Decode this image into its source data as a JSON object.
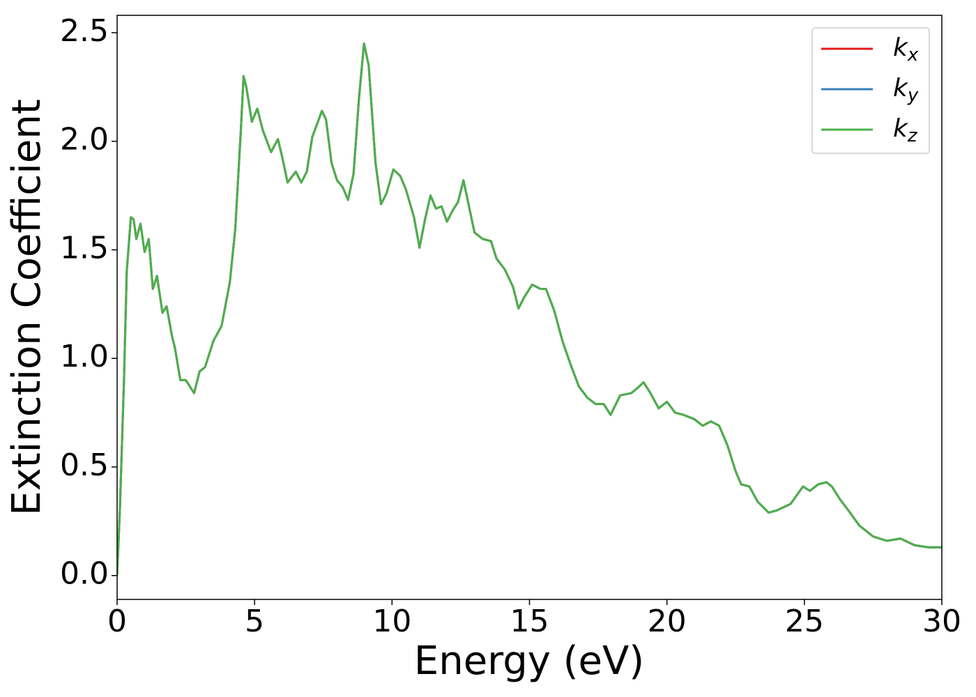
{
  "chart_data": {
    "type": "line",
    "xlabel": "Energy (eV)",
    "ylabel": "Extinction Coefficient",
    "xlim": [
      0,
      30
    ],
    "xticks": [
      0,
      5,
      10,
      15,
      20,
      25,
      30
    ],
    "ylim": [
      -0.11,
      2.58
    ],
    "yticks": [
      {
        "value": 0,
        "label": "0.0"
      },
      0.5,
      {
        "value": 1,
        "label": "1.0"
      },
      1.5,
      {
        "value": 2,
        "label": "2.0"
      },
      2.5
    ],
    "legend": "upper right",
    "x": [
      0,
      0.1,
      0.25,
      0.35,
      0.5,
      0.6,
      0.7,
      0.85,
      1.0,
      1.15,
      1.3,
      1.45,
      1.65,
      1.8,
      2.0,
      2.1,
      2.3,
      2.5,
      2.8,
      3.0,
      3.2,
      3.5,
      3.8,
      4.1,
      4.3,
      4.5,
      4.6,
      4.7,
      4.9,
      5.1,
      5.3,
      5.6,
      5.85,
      6.0,
      6.2,
      6.5,
      6.7,
      6.9,
      7.1,
      7.45,
      7.6,
      7.8,
      8.0,
      8.2,
      8.4,
      8.6,
      8.8,
      8.98,
      9.15,
      9.4,
      9.6,
      9.8,
      10.05,
      10.3,
      10.5,
      10.8,
      11.0,
      11.2,
      11.4,
      11.6,
      11.8,
      12.0,
      12.2,
      12.4,
      12.6,
      12.8,
      13.0,
      13.3,
      13.6,
      13.8,
      14.1,
      14.4,
      14.6,
      14.8,
      15.1,
      15.4,
      15.6,
      15.9,
      16.2,
      16.5,
      16.8,
      17.1,
      17.4,
      17.7,
      17.95,
      18.3,
      18.7,
      18.9,
      19.15,
      19.4,
      19.7,
      20.0,
      20.3,
      20.6,
      21.0,
      21.3,
      21.6,
      21.9,
      22.2,
      22.5,
      22.7,
      23.0,
      23.3,
      23.7,
      24.0,
      24.5,
      24.95,
      25.2,
      25.5,
      25.8,
      26.0,
      26.3,
      26.6,
      27.0,
      27.5,
      28.0,
      28.5,
      29.0,
      29.5,
      30.0
    ],
    "series": [
      {
        "name": "kx",
        "color": "#e41a1c",
        "values": [
          0,
          0.3,
          0.9,
          1.4,
          1.65,
          1.64,
          1.55,
          1.62,
          1.49,
          1.55,
          1.32,
          1.38,
          1.21,
          1.24,
          1.1,
          1.05,
          0.9,
          0.9,
          0.84,
          0.94,
          0.96,
          1.08,
          1.15,
          1.35,
          1.6,
          2.05,
          2.3,
          2.25,
          2.09,
          2.15,
          2.05,
          1.95,
          2.01,
          1.93,
          1.81,
          1.86,
          1.81,
          1.86,
          2.02,
          2.14,
          2.1,
          1.9,
          1.82,
          1.79,
          1.73,
          1.85,
          2.2,
          2.45,
          2.35,
          1.9,
          1.71,
          1.76,
          1.87,
          1.84,
          1.78,
          1.65,
          1.51,
          1.64,
          1.75,
          1.69,
          1.7,
          1.63,
          1.68,
          1.72,
          1.82,
          1.7,
          1.58,
          1.55,
          1.54,
          1.46,
          1.41,
          1.33,
          1.23,
          1.28,
          1.34,
          1.32,
          1.32,
          1.22,
          1.08,
          0.97,
          0.87,
          0.82,
          0.79,
          0.79,
          0.74,
          0.83,
          0.84,
          0.86,
          0.89,
          0.84,
          0.77,
          0.8,
          0.75,
          0.74,
          0.72,
          0.69,
          0.71,
          0.69,
          0.6,
          0.48,
          0.42,
          0.41,
          0.34,
          0.29,
          0.3,
          0.33,
          0.41,
          0.39,
          0.42,
          0.43,
          0.41,
          0.35,
          0.3,
          0.23,
          0.18,
          0.16,
          0.17,
          0.14,
          0.13,
          0.13
        ]
      },
      {
        "name": "ky",
        "color": "#377eb8",
        "values": [
          0,
          0.3,
          0.9,
          1.4,
          1.65,
          1.64,
          1.55,
          1.62,
          1.49,
          1.55,
          1.32,
          1.38,
          1.21,
          1.24,
          1.1,
          1.05,
          0.9,
          0.9,
          0.84,
          0.94,
          0.96,
          1.08,
          1.15,
          1.35,
          1.6,
          2.05,
          2.3,
          2.25,
          2.09,
          2.15,
          2.05,
          1.95,
          2.01,
          1.93,
          1.81,
          1.86,
          1.81,
          1.86,
          2.02,
          2.14,
          2.1,
          1.9,
          1.82,
          1.79,
          1.73,
          1.85,
          2.2,
          2.45,
          2.35,
          1.9,
          1.71,
          1.76,
          1.87,
          1.84,
          1.78,
          1.65,
          1.51,
          1.64,
          1.75,
          1.69,
          1.7,
          1.63,
          1.68,
          1.72,
          1.82,
          1.7,
          1.58,
          1.55,
          1.54,
          1.46,
          1.41,
          1.33,
          1.23,
          1.28,
          1.34,
          1.32,
          1.32,
          1.22,
          1.08,
          0.97,
          0.87,
          0.82,
          0.79,
          0.79,
          0.74,
          0.83,
          0.84,
          0.86,
          0.89,
          0.84,
          0.77,
          0.8,
          0.75,
          0.74,
          0.72,
          0.69,
          0.71,
          0.69,
          0.6,
          0.48,
          0.42,
          0.41,
          0.34,
          0.29,
          0.3,
          0.33,
          0.41,
          0.39,
          0.42,
          0.43,
          0.41,
          0.35,
          0.3,
          0.23,
          0.18,
          0.16,
          0.17,
          0.14,
          0.13,
          0.13
        ]
      },
      {
        "name": "kz",
        "color": "#4daf4a",
        "values": [
          0,
          0.3,
          0.9,
          1.4,
          1.65,
          1.64,
          1.55,
          1.62,
          1.49,
          1.55,
          1.32,
          1.38,
          1.21,
          1.24,
          1.1,
          1.05,
          0.9,
          0.9,
          0.84,
          0.94,
          0.96,
          1.08,
          1.15,
          1.35,
          1.6,
          2.05,
          2.3,
          2.25,
          2.09,
          2.15,
          2.05,
          1.95,
          2.01,
          1.93,
          1.81,
          1.86,
          1.81,
          1.86,
          2.02,
          2.14,
          2.1,
          1.9,
          1.82,
          1.79,
          1.73,
          1.85,
          2.2,
          2.45,
          2.35,
          1.9,
          1.71,
          1.76,
          1.87,
          1.84,
          1.78,
          1.65,
          1.51,
          1.64,
          1.75,
          1.69,
          1.7,
          1.63,
          1.68,
          1.72,
          1.82,
          1.7,
          1.58,
          1.55,
          1.54,
          1.46,
          1.41,
          1.33,
          1.23,
          1.28,
          1.34,
          1.32,
          1.32,
          1.22,
          1.08,
          0.97,
          0.87,
          0.82,
          0.79,
          0.79,
          0.74,
          0.83,
          0.84,
          0.86,
          0.89,
          0.84,
          0.77,
          0.8,
          0.75,
          0.74,
          0.72,
          0.69,
          0.71,
          0.69,
          0.6,
          0.48,
          0.42,
          0.41,
          0.34,
          0.29,
          0.3,
          0.33,
          0.41,
          0.39,
          0.42,
          0.43,
          0.41,
          0.35,
          0.3,
          0.23,
          0.18,
          0.16,
          0.17,
          0.14,
          0.13,
          0.13
        ]
      }
    ]
  }
}
